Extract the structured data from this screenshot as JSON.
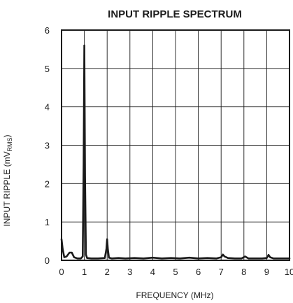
{
  "chart_data": {
    "type": "line",
    "title": "INPUT RIPPLE SPECTRUM",
    "xlabel": "FREQUENCY (MHz)",
    "ylabel": {
      "main": "INPUT RIPPLE (mV",
      "subscript": "RMS",
      "close": ")"
    },
    "xlim": [
      0,
      10
    ],
    "ylim": [
      0,
      6
    ],
    "x_ticks": [
      "0",
      "1",
      "2",
      "3",
      "4",
      "5",
      "6",
      "7",
      "8",
      "9",
      "10"
    ],
    "y_ticks": [
      "0",
      "1",
      "2",
      "3",
      "4",
      "5",
      "6"
    ],
    "grid": true,
    "series": [
      {
        "x": [
          0.0,
          0.05,
          0.12,
          0.22,
          0.35,
          0.45,
          0.55,
          0.7,
          0.85,
          0.93,
          0.97,
          1.0,
          1.03,
          1.07,
          1.12,
          1.3,
          1.6,
          1.9,
          1.97,
          2.0,
          2.03,
          2.08,
          2.2,
          2.5,
          2.8,
          3.2,
          3.6,
          4.0,
          4.4,
          4.8,
          5.2,
          5.6,
          6.0,
          6.4,
          6.8,
          7.0,
          7.08,
          7.15,
          7.3,
          7.6,
          7.9,
          8.05,
          8.2,
          8.5,
          8.8,
          9.0,
          9.08,
          9.15,
          9.3,
          9.6,
          10.0
        ],
        "y": [
          0.55,
          0.3,
          0.08,
          0.1,
          0.2,
          0.2,
          0.08,
          0.05,
          0.05,
          0.1,
          2.5,
          5.6,
          2.2,
          0.15,
          0.06,
          0.05,
          0.05,
          0.06,
          0.3,
          0.55,
          0.3,
          0.07,
          0.05,
          0.06,
          0.05,
          0.06,
          0.05,
          0.07,
          0.05,
          0.06,
          0.05,
          0.07,
          0.05,
          0.06,
          0.05,
          0.08,
          0.15,
          0.1,
          0.06,
          0.05,
          0.05,
          0.1,
          0.05,
          0.05,
          0.05,
          0.06,
          0.14,
          0.08,
          0.05,
          0.05,
          0.05
        ]
      }
    ]
  }
}
